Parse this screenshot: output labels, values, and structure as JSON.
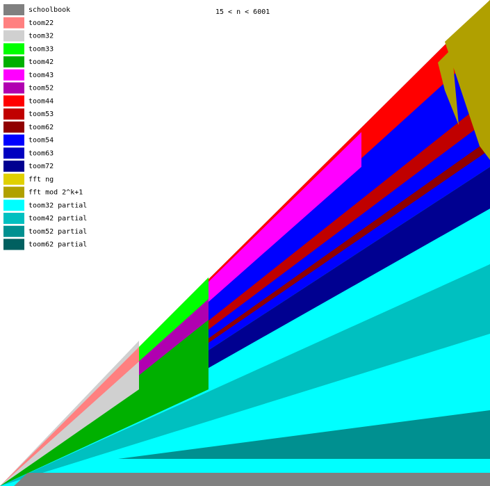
{
  "chart_data": {
    "type": "heatmap",
    "title": "15 < n < 6001",
    "series": [
      {
        "name": "schoolbook",
        "color": "#808080"
      },
      {
        "name": "toom22",
        "color": "#ff8080"
      },
      {
        "name": "toom32",
        "color": "#d0d0d0"
      },
      {
        "name": "toom33",
        "color": "#00ff00"
      },
      {
        "name": "toom42",
        "color": "#00b000"
      },
      {
        "name": "toom43",
        "color": "#ff00ff"
      },
      {
        "name": "toom52",
        "color": "#b000b0"
      },
      {
        "name": "toom44",
        "color": "#ff0000"
      },
      {
        "name": "toom53",
        "color": "#c00000"
      },
      {
        "name": "toom62",
        "color": "#900000"
      },
      {
        "name": "toom54",
        "color": "#0000ff"
      },
      {
        "name": "toom63",
        "color": "#0000c0"
      },
      {
        "name": "toom72",
        "color": "#000090"
      },
      {
        "name": "fft ng",
        "color": "#e0d000"
      },
      {
        "name": "fft mod 2^k+1",
        "color": "#b0a000"
      },
      {
        "name": "toom32 partial",
        "color": "#00ffff"
      },
      {
        "name": "toom42 partial",
        "color": "#00c0c0"
      },
      {
        "name": "toom52 partial",
        "color": "#009090"
      },
      {
        "name": "toom62 partial",
        "color": "#006060"
      }
    ]
  }
}
